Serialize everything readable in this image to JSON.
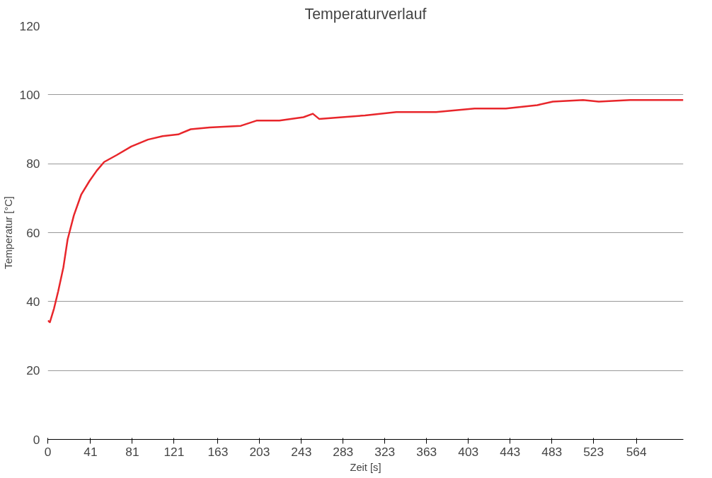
{
  "chart_data": {
    "type": "line",
    "title": "Temperaturverlauf",
    "xlabel": "Zeit [s]",
    "ylabel": "Temperatur [°C]",
    "x": [
      0,
      2,
      6,
      10,
      15,
      19,
      25,
      32,
      40,
      47,
      54,
      66,
      80,
      96,
      110,
      125,
      137,
      155,
      185,
      200,
      222,
      245,
      254,
      260,
      282,
      304,
      334,
      372,
      409,
      439,
      469,
      484,
      513,
      528,
      558,
      609
    ],
    "series": [
      {
        "color": "#e8262b",
        "values": [
          34.5,
          34,
          38,
          43,
          50,
          58,
          65,
          71,
          75,
          78,
          80.5,
          82.5,
          85,
          87,
          88,
          88.5,
          90,
          90.5,
          91,
          92.5,
          92.5,
          93.5,
          94.5,
          93,
          93.5,
          94,
          95,
          95,
          96,
          96,
          97,
          98,
          98.5,
          98,
          98.5,
          98.5
        ]
      }
    ],
    "xlim": [
      0,
      609
    ],
    "ylim": [
      0,
      120
    ],
    "xticks": [
      0,
      41,
      81,
      121,
      163,
      203,
      243,
      283,
      323,
      363,
      403,
      443,
      483,
      523,
      564
    ],
    "yticks": [
      0,
      20,
      40,
      60,
      80,
      100,
      120
    ],
    "grid": "y",
    "marker": "none",
    "line_style": "solid"
  }
}
